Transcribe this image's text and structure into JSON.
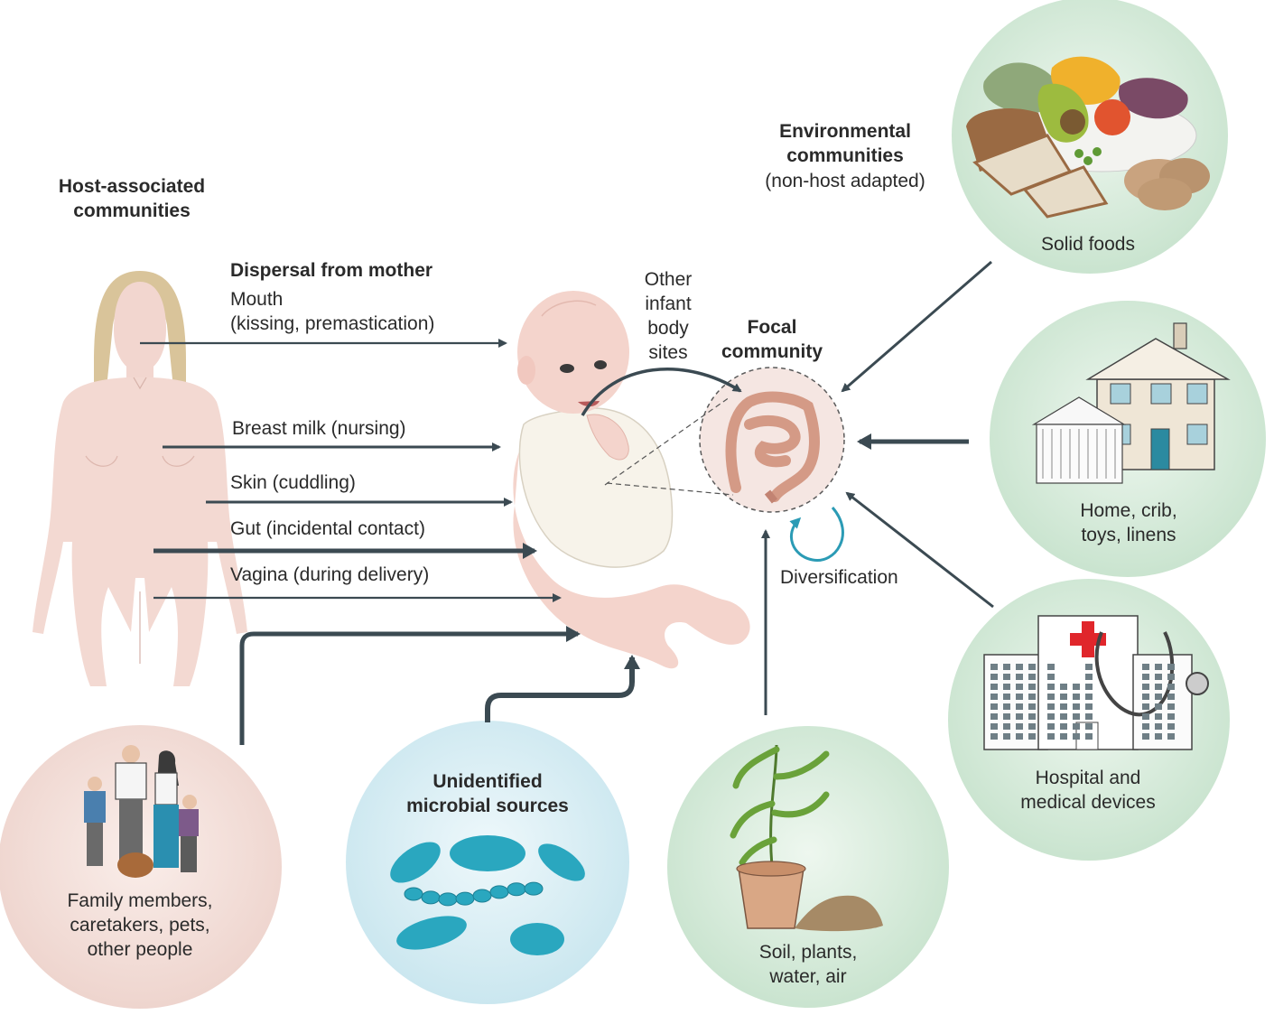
{
  "host_heading": "Host-associated\ncommunities",
  "env_heading": {
    "title": "Environmental\ncommunities",
    "subtitle": "(non-host adapted)"
  },
  "mother": {
    "heading": "Dispersal from mother",
    "routes": [
      {
        "label": "Mouth\n(kissing, premastication)"
      },
      {
        "label": "Breast milk (nursing)"
      },
      {
        "label": "Skin (cuddling)"
      },
      {
        "label": "Gut (incidental contact)"
      },
      {
        "label": "Vagina (during delivery)"
      }
    ]
  },
  "infant": {
    "other_sites": "Other\ninfant\nbody\nsites",
    "focal_title": "Focal\ncommunity",
    "diversification": "Diversification"
  },
  "sources": {
    "family": "Family members,\ncaretakers, pets,\nother people",
    "unidentified": "Unidentified\nmicrobial sources",
    "soil": "Soil, plants,\nwater, air",
    "solid_foods": "Solid foods",
    "home": "Home, crib,\ntoys, linens",
    "hospital": "Hospital and\nmedical devices"
  },
  "colors": {
    "arrow": "#3b4a52",
    "env_circle": "#cfe6d3",
    "host_circle": "#f0d8d2",
    "microbe_circle": "#cfe8ef",
    "skin": "#f2d3cc",
    "microbe": "#2aa7bf",
    "diversify": "#2b9bb5"
  }
}
